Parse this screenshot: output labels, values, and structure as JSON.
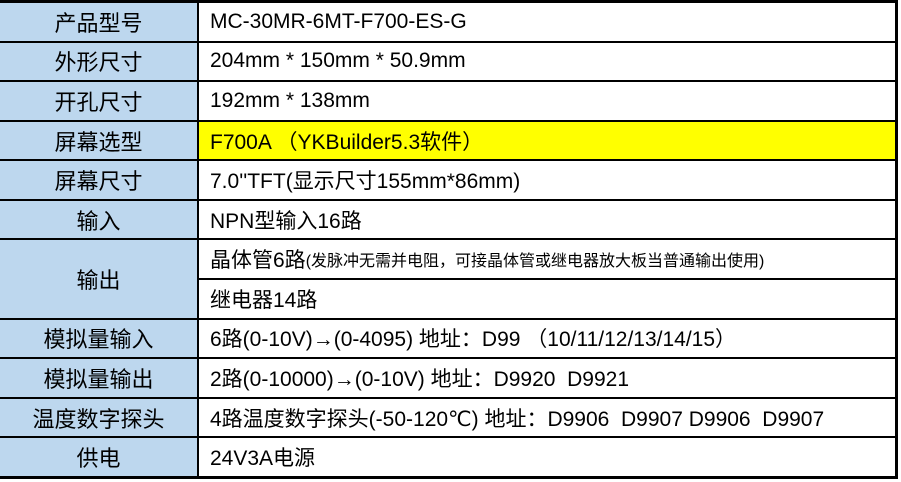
{
  "table": {
    "label_bg": "#BDD7EE",
    "highlight_bg": "#FFFF00",
    "border_color": "#000000",
    "rows": [
      {
        "label": "产品型号",
        "value": "MC-30MR-6MT-F700-ES-G"
      },
      {
        "label": "外形尺寸",
        "value": "204mm * 150mm * 50.9mm"
      },
      {
        "label": "开孔尺寸",
        "value": "192mm * 138mm"
      },
      {
        "label": "屏幕选型",
        "value": "F700A （YKBuilder5.3软件）",
        "highlighted": true
      },
      {
        "label": "屏幕尺寸",
        "value": "7.0''TFT(显示尺寸155mm*86mm)"
      },
      {
        "label": "输入",
        "value": "NPN型输入16路"
      },
      {
        "label": "输出",
        "value_main": "晶体管6路",
        "value_note": "(发脉冲无需并电阻，可接晶体管或继电器放大板当普通输出使用)",
        "value2": "继电器14路"
      },
      {
        "label": "模拟量输入",
        "value": "6路(0-10V)→(0-4095) 地址：D99 （10/11/12/13/14/15）"
      },
      {
        "label": "模拟量输出",
        "value": "2路(0-10000)→(0-10V) 地址：D9920  D9921"
      },
      {
        "label": "温度数字探头",
        "value": "4路温度数字探头(-50-120℃) 地址：D9906  D9907 D9906  D9907"
      },
      {
        "label": "供电",
        "value": "24V3A电源"
      }
    ]
  }
}
